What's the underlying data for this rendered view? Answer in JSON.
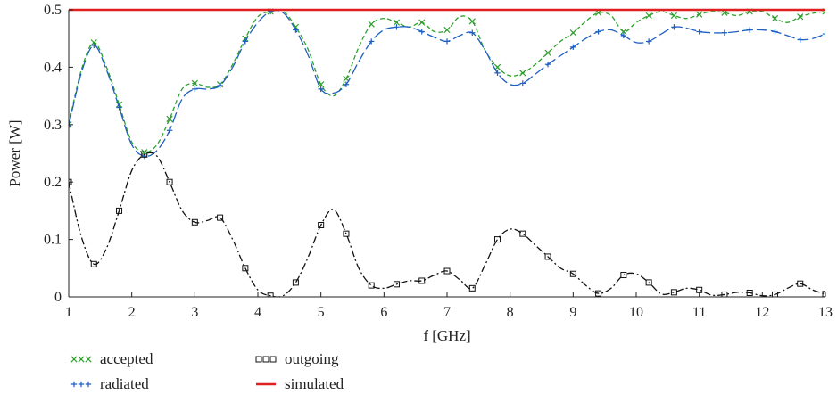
{
  "chart_data": {
    "type": "line",
    "xlabel": "f [GHz]",
    "ylabel": "Power [W]",
    "xlim": [
      1,
      13
    ],
    "ylim": [
      0,
      0.5
    ],
    "xticks": [
      "1",
      "2",
      "3",
      "4",
      "5",
      "6",
      "7",
      "8",
      "9",
      "10",
      "11",
      "12",
      "13"
    ],
    "yticks": [
      "0",
      "0.1",
      "0.2",
      "0.3",
      "0.4",
      "0.5"
    ],
    "grid": false,
    "legend_position": "bottom-left, below plot",
    "series": [
      {
        "name": "accepted",
        "color": "#2ca02c",
        "line_style": "dashed",
        "marker": "x",
        "x": [
          1.0,
          1.2,
          1.4,
          1.6,
          1.8,
          2.0,
          2.2,
          2.4,
          2.6,
          2.8,
          3.0,
          3.2,
          3.4,
          3.6,
          3.8,
          4.0,
          4.2,
          4.4,
          4.6,
          4.8,
          5.0,
          5.2,
          5.4,
          5.6,
          5.8,
          6.0,
          6.2,
          6.4,
          6.6,
          6.8,
          7.0,
          7.2,
          7.4,
          7.6,
          7.8,
          8.0,
          8.2,
          8.4,
          8.6,
          8.8,
          9.0,
          9.2,
          9.4,
          9.6,
          9.8,
          10.0,
          10.2,
          10.4,
          10.6,
          10.8,
          11.0,
          11.2,
          11.4,
          11.6,
          11.8,
          12.0,
          12.2,
          12.4,
          12.6,
          12.8,
          13.0
        ],
        "y": [
          0.3,
          0.395,
          0.443,
          0.4,
          0.335,
          0.27,
          0.252,
          0.265,
          0.31,
          0.362,
          0.372,
          0.365,
          0.37,
          0.405,
          0.45,
          0.488,
          0.497,
          0.498,
          0.47,
          0.43,
          0.37,
          0.35,
          0.38,
          0.435,
          0.475,
          0.485,
          0.478,
          0.47,
          0.478,
          0.462,
          0.465,
          0.488,
          0.48,
          0.43,
          0.4,
          0.385,
          0.39,
          0.405,
          0.425,
          0.445,
          0.46,
          0.48,
          0.495,
          0.49,
          0.462,
          0.478,
          0.49,
          0.497,
          0.49,
          0.485,
          0.492,
          0.497,
          0.495,
          0.49,
          0.497,
          0.497,
          0.485,
          0.478,
          0.488,
          0.494,
          0.497
        ]
      },
      {
        "name": "radiated",
        "color": "#1f5fbf",
        "line_style": "long-dash",
        "marker": "+",
        "x": [
          1.0,
          1.2,
          1.4,
          1.6,
          1.8,
          2.0,
          2.2,
          2.4,
          2.6,
          2.8,
          3.0,
          3.2,
          3.4,
          3.6,
          3.8,
          4.0,
          4.2,
          4.4,
          4.6,
          4.8,
          5.0,
          5.2,
          5.4,
          5.6,
          5.8,
          6.0,
          6.2,
          6.4,
          6.6,
          6.8,
          7.0,
          7.2,
          7.4,
          7.6,
          7.8,
          8.0,
          8.2,
          8.4,
          8.6,
          8.8,
          9.0,
          9.2,
          9.4,
          9.6,
          9.8,
          10.0,
          10.2,
          10.4,
          10.6,
          10.8,
          11.0,
          11.2,
          11.4,
          11.6,
          11.8,
          12.0,
          12.2,
          12.4,
          12.6,
          12.8,
          13.0
        ],
        "y": [
          0.298,
          0.39,
          0.438,
          0.395,
          0.33,
          0.265,
          0.245,
          0.255,
          0.29,
          0.345,
          0.362,
          0.362,
          0.368,
          0.4,
          0.445,
          0.478,
          0.497,
          0.495,
          0.465,
          0.42,
          0.362,
          0.355,
          0.37,
          0.41,
          0.445,
          0.465,
          0.47,
          0.47,
          0.462,
          0.452,
          0.445,
          0.455,
          0.46,
          0.43,
          0.39,
          0.37,
          0.372,
          0.388,
          0.405,
          0.42,
          0.435,
          0.45,
          0.462,
          0.465,
          0.455,
          0.443,
          0.445,
          0.458,
          0.47,
          0.468,
          0.462,
          0.46,
          0.46,
          0.462,
          0.465,
          0.465,
          0.462,
          0.455,
          0.448,
          0.45,
          0.458
        ]
      },
      {
        "name": "outgoing",
        "color": "#111111",
        "line_style": "dash-dot",
        "marker": "square",
        "x": [
          1.0,
          1.2,
          1.4,
          1.6,
          1.8,
          2.0,
          2.2,
          2.4,
          2.6,
          2.8,
          3.0,
          3.2,
          3.4,
          3.6,
          3.8,
          4.0,
          4.2,
          4.4,
          4.6,
          4.8,
          5.0,
          5.2,
          5.4,
          5.6,
          5.8,
          6.0,
          6.2,
          6.4,
          6.6,
          6.8,
          7.0,
          7.2,
          7.4,
          7.6,
          7.8,
          8.0,
          8.2,
          8.4,
          8.6,
          8.8,
          9.0,
          9.2,
          9.4,
          9.6,
          9.8,
          10.0,
          10.2,
          10.4,
          10.6,
          10.8,
          11.0,
          11.2,
          11.4,
          11.6,
          11.8,
          12.0,
          12.2,
          12.4,
          12.6,
          12.8,
          13.0
        ],
        "y": [
          0.2,
          0.105,
          0.057,
          0.085,
          0.15,
          0.22,
          0.248,
          0.245,
          0.2,
          0.15,
          0.13,
          0.133,
          0.138,
          0.1,
          0.05,
          0.012,
          0.002,
          0.002,
          0.025,
          0.07,
          0.125,
          0.152,
          0.11,
          0.05,
          0.02,
          0.015,
          0.022,
          0.028,
          0.028,
          0.038,
          0.045,
          0.03,
          0.015,
          0.055,
          0.1,
          0.118,
          0.11,
          0.09,
          0.07,
          0.05,
          0.04,
          0.02,
          0.006,
          0.015,
          0.038,
          0.04,
          0.025,
          0.005,
          0.008,
          0.015,
          0.012,
          0.003,
          0.004,
          0.008,
          0.007,
          0.002,
          0.004,
          0.015,
          0.023,
          0.012,
          0.005
        ]
      },
      {
        "name": "simulated",
        "color": "#e02020",
        "line_style": "solid",
        "marker": "none",
        "x": [
          1,
          13
        ],
        "y": [
          0.5,
          0.5
        ]
      }
    ],
    "legend": [
      {
        "name": "accepted",
        "color": "#2ca02c",
        "marker": "x"
      },
      {
        "name": "radiated",
        "color": "#1f5fbf",
        "marker": "+"
      },
      {
        "name": "outgoing",
        "color": "#111111",
        "marker": "square"
      },
      {
        "name": "simulated",
        "color": "#e02020",
        "marker": "none"
      }
    ]
  }
}
